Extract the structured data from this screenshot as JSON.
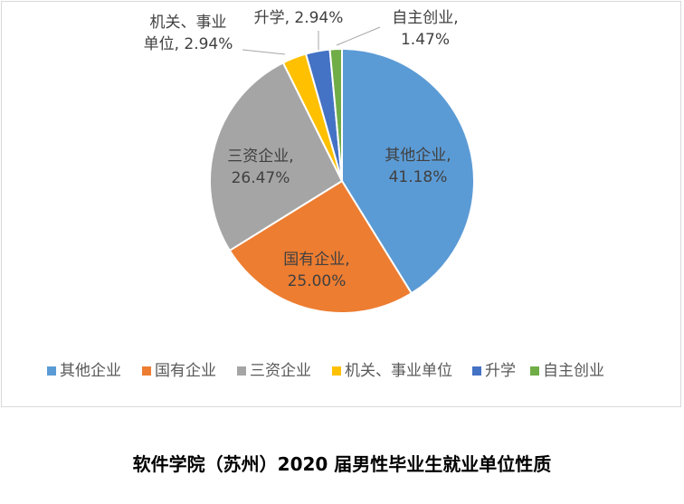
{
  "chart_data": {
    "type": "pie",
    "categories": [
      "其他企业",
      "国有企业",
      "三资企业",
      "机关、事业单位",
      "升学",
      "自主创业"
    ],
    "values": [
      41.18,
      25.0,
      26.47,
      2.94,
      2.94,
      1.47
    ],
    "value_labels": [
      "41.18%",
      "25.00%",
      "26.47%",
      "2.94%",
      "2.94%",
      "1.47%"
    ],
    "slice_labels": [
      [
        "其他企业,",
        "41.18%"
      ],
      [
        "国有企业,",
        "25.00%"
      ],
      [
        "三资企业,",
        "26.47%"
      ],
      [
        "机关、事业",
        "单位, 2.94%"
      ],
      [
        "升学, 2.94%"
      ],
      [
        "自主创业,",
        "1.47%"
      ]
    ],
    "colors": [
      "#5b9bd5",
      "#ed7d31",
      "#a5a5a5",
      "#ffc000",
      "#4472c4",
      "#70ad47"
    ],
    "legend_position": "bottom",
    "start_angle": "12 o'clock, clockwise"
  },
  "caption": "软件学院（苏州）2020 届男性毕业生就业单位性质"
}
